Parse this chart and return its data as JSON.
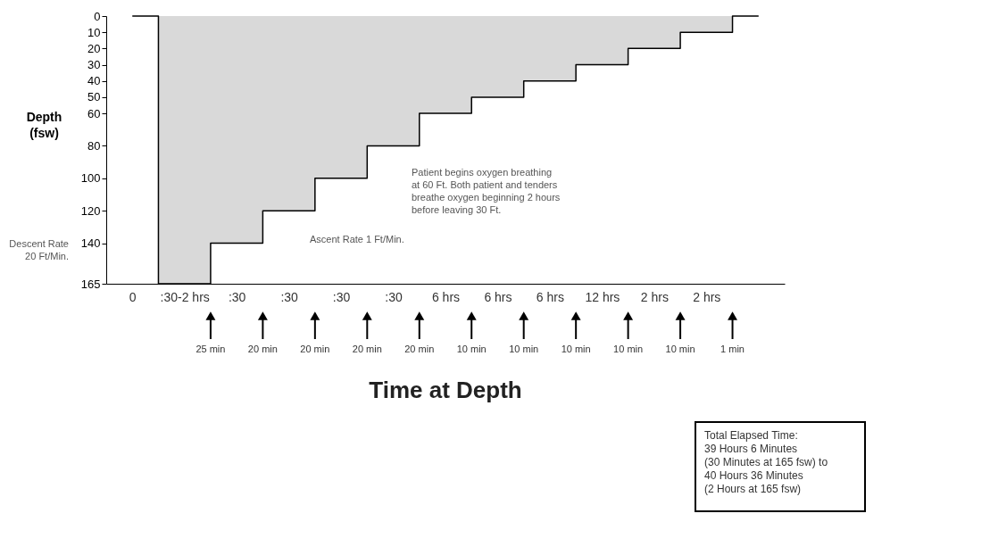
{
  "chart_data": {
    "type": "area",
    "xlabel": "Time at Depth",
    "ylabel": "Depth\n(fsw)",
    "categories": [
      "0",
      ":30-2 hrs",
      ":30",
      ":30",
      ":30",
      ":30",
      "6 hrs",
      "6 hrs",
      "6 hrs",
      "12 hrs",
      "2 hrs",
      "2 hrs",
      null
    ],
    "values": [
      0,
      165,
      140,
      120,
      100,
      80,
      60,
      50,
      40,
      30,
      20,
      10,
      0
    ],
    "color": "#d9d9d9",
    "ylim": [
      165,
      0
    ],
    "yticks": [
      0,
      10,
      20,
      30,
      40,
      50,
      60,
      80,
      100,
      120,
      140,
      165
    ],
    "grid": false,
    "annotations": [
      "25 min",
      "20 min",
      "20 min",
      "20 min",
      "20 min",
      "10 min",
      "10 min",
      "10 min",
      "10 min",
      "10 min",
      "1 min",
      "Descent Rate\n20 Ft/Min.",
      "Ascent Rate 1 Ft/Min.",
      "Patient begins oxygen breathing\nat 60 Ft. Both patient and tenders\nbreathe oxygen beginning 2 hours\nbefore leaving 30 Ft.",
      "Total Elapsed Time:\n39 Hours 6 Minutes\n(30 Minutes at 165 fsw) to\n40 Hours 36 Minutes\n(2 Hours at 165 fsw)"
    ]
  }
}
